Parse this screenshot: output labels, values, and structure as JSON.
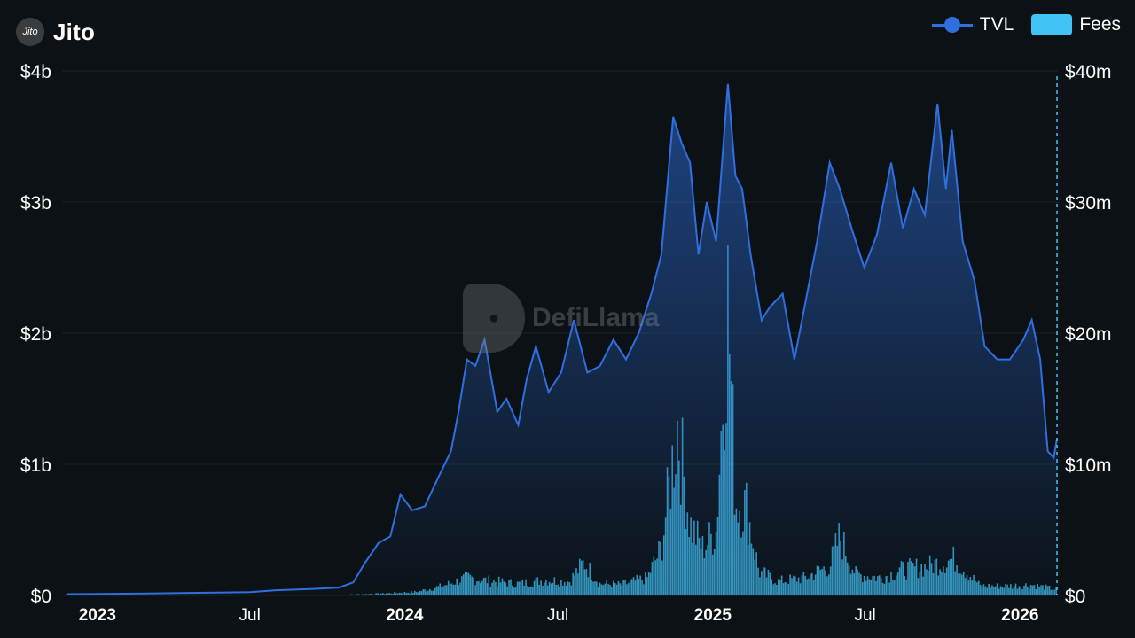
{
  "header": {
    "logo_text": "Jito",
    "title": "Jito"
  },
  "legend": {
    "tvl_label": "TVL",
    "fees_label": "Fees"
  },
  "watermark": {
    "text": "DefiLlama"
  },
  "colors": {
    "background": "#0b1114",
    "tvl_line": "#2f6fe0",
    "fees_bar": "#41c3f5",
    "grid": "#1b2227",
    "cursor_line": "#41c3f5"
  },
  "chart_data": {
    "type": "line",
    "title": "Jito",
    "x_range": [
      "2022-11-20",
      "2026-02-15"
    ],
    "x_ticks": [
      {
        "date": "2023-01-01",
        "label": "2023",
        "bold": true
      },
      {
        "date": "2023-07-01",
        "label": "Jul",
        "bold": false
      },
      {
        "date": "2024-01-01",
        "label": "2024",
        "bold": true
      },
      {
        "date": "2024-07-01",
        "label": "Jul",
        "bold": false
      },
      {
        "date": "2025-01-01",
        "label": "2025",
        "bold": true
      },
      {
        "date": "2025-07-01",
        "label": "Jul",
        "bold": false
      },
      {
        "date": "2026-01-01",
        "label": "2026",
        "bold": true
      }
    ],
    "y_left": {
      "min": 0,
      "max": 4000000000,
      "ticks": [
        0,
        1000000000,
        2000000000,
        3000000000,
        4000000000
      ],
      "tick_labels": [
        "$0",
        "$1b",
        "$2b",
        "$3b",
        "$4b"
      ]
    },
    "y_right": {
      "min": 0,
      "max": 40000000,
      "ticks": [
        0,
        10000000,
        20000000,
        30000000,
        40000000
      ],
      "tick_labels": [
        "$0",
        "$10m",
        "$20m",
        "$30m",
        "$40m"
      ]
    },
    "grid": true,
    "legend_position": "top-right",
    "series": [
      {
        "name": "TVL",
        "axis": "left",
        "type": "area-line",
        "points": [
          [
            "2022-11-25",
            10000000
          ],
          [
            "2023-01-01",
            12000000
          ],
          [
            "2023-03-01",
            15000000
          ],
          [
            "2023-05-01",
            20000000
          ],
          [
            "2023-07-01",
            25000000
          ],
          [
            "2023-08-01",
            40000000
          ],
          [
            "2023-09-15",
            50000000
          ],
          [
            "2023-10-15",
            60000000
          ],
          [
            "2023-11-01",
            100000000
          ],
          [
            "2023-11-15",
            250000000
          ],
          [
            "2023-12-01",
            400000000
          ],
          [
            "2023-12-15",
            450000000
          ],
          [
            "2023-12-27",
            770000000
          ],
          [
            "2024-01-10",
            650000000
          ],
          [
            "2024-01-25",
            680000000
          ],
          [
            "2024-02-10",
            900000000
          ],
          [
            "2024-02-25",
            1100000000
          ],
          [
            "2024-03-05",
            1400000000
          ],
          [
            "2024-03-15",
            1800000000
          ],
          [
            "2024-03-25",
            1750000000
          ],
          [
            "2024-04-05",
            1950000000
          ],
          [
            "2024-04-20",
            1400000000
          ],
          [
            "2024-05-01",
            1500000000
          ],
          [
            "2024-05-15",
            1300000000
          ],
          [
            "2024-05-25",
            1650000000
          ],
          [
            "2024-06-05",
            1900000000
          ],
          [
            "2024-06-20",
            1550000000
          ],
          [
            "2024-07-05",
            1700000000
          ],
          [
            "2024-07-20",
            2100000000
          ],
          [
            "2024-08-05",
            1700000000
          ],
          [
            "2024-08-20",
            1750000000
          ],
          [
            "2024-09-05",
            1950000000
          ],
          [
            "2024-09-20",
            1800000000
          ],
          [
            "2024-10-05",
            2000000000
          ],
          [
            "2024-10-20",
            2300000000
          ],
          [
            "2024-11-01",
            2600000000
          ],
          [
            "2024-11-15",
            3650000000
          ],
          [
            "2024-11-25",
            3450000000
          ],
          [
            "2024-12-05",
            3300000000
          ],
          [
            "2024-12-15",
            2600000000
          ],
          [
            "2024-12-25",
            3000000000
          ],
          [
            "2025-01-05",
            2700000000
          ],
          [
            "2025-01-19",
            3900000000
          ],
          [
            "2025-01-28",
            3200000000
          ],
          [
            "2025-02-05",
            3100000000
          ],
          [
            "2025-02-15",
            2600000000
          ],
          [
            "2025-02-28",
            2100000000
          ],
          [
            "2025-03-10",
            2200000000
          ],
          [
            "2025-03-25",
            2300000000
          ],
          [
            "2025-04-08",
            1800000000
          ],
          [
            "2025-04-20",
            2200000000
          ],
          [
            "2025-05-05",
            2700000000
          ],
          [
            "2025-05-20",
            3300000000
          ],
          [
            "2025-06-01",
            3100000000
          ],
          [
            "2025-06-15",
            2800000000
          ],
          [
            "2025-06-30",
            2500000000
          ],
          [
            "2025-07-15",
            2750000000
          ],
          [
            "2025-08-01",
            3300000000
          ],
          [
            "2025-08-15",
            2800000000
          ],
          [
            "2025-08-28",
            3100000000
          ],
          [
            "2025-09-10",
            2900000000
          ],
          [
            "2025-09-25",
            3750000000
          ],
          [
            "2025-10-05",
            3100000000
          ],
          [
            "2025-10-12",
            3550000000
          ],
          [
            "2025-10-25",
            2700000000
          ],
          [
            "2025-11-08",
            2400000000
          ],
          [
            "2025-11-20",
            1900000000
          ],
          [
            "2025-12-05",
            1800000000
          ],
          [
            "2025-12-20",
            1800000000
          ],
          [
            "2026-01-05",
            1950000000
          ],
          [
            "2026-01-15",
            2100000000
          ],
          [
            "2026-01-25",
            1800000000
          ],
          [
            "2026-02-03",
            1100000000
          ],
          [
            "2026-02-10",
            1050000000
          ],
          [
            "2026-02-14",
            1200000000
          ]
        ]
      },
      {
        "name": "Fees",
        "axis": "right",
        "type": "bar",
        "points": [
          [
            "2023-10-15",
            50000
          ],
          [
            "2023-12-01",
            150000
          ],
          [
            "2024-01-15",
            300000
          ],
          [
            "2024-02-15",
            800000
          ],
          [
            "2024-03-15",
            1500000
          ],
          [
            "2024-04-15",
            1200000
          ],
          [
            "2024-05-15",
            1000000
          ],
          [
            "2024-06-15",
            1300000
          ],
          [
            "2024-07-15",
            1200000
          ],
          [
            "2024-08-01",
            2800000
          ],
          [
            "2024-08-20",
            1000000
          ],
          [
            "2024-09-15",
            900000
          ],
          [
            "2024-10-15",
            1500000
          ],
          [
            "2024-11-01",
            4000000
          ],
          [
            "2024-11-20",
            14500000
          ],
          [
            "2024-12-05",
            6000000
          ],
          [
            "2024-12-20",
            4000000
          ],
          [
            "2025-01-05",
            5500000
          ],
          [
            "2025-01-19",
            25000000
          ],
          [
            "2025-01-28",
            8000000
          ],
          [
            "2025-02-10",
            7500000
          ],
          [
            "2025-02-25",
            2000000
          ],
          [
            "2025-03-20",
            1200000
          ],
          [
            "2025-04-20",
            1500000
          ],
          [
            "2025-05-20",
            2500000
          ],
          [
            "2025-06-01",
            5000000
          ],
          [
            "2025-06-20",
            1800000
          ],
          [
            "2025-07-20",
            1500000
          ],
          [
            "2025-08-15",
            2200000
          ],
          [
            "2025-09-15",
            2500000
          ],
          [
            "2025-10-15",
            3100000
          ],
          [
            "2025-11-15",
            800000
          ],
          [
            "2025-12-15",
            800000
          ],
          [
            "2026-01-15",
            900000
          ],
          [
            "2026-02-14",
            500000
          ]
        ]
      }
    ]
  }
}
